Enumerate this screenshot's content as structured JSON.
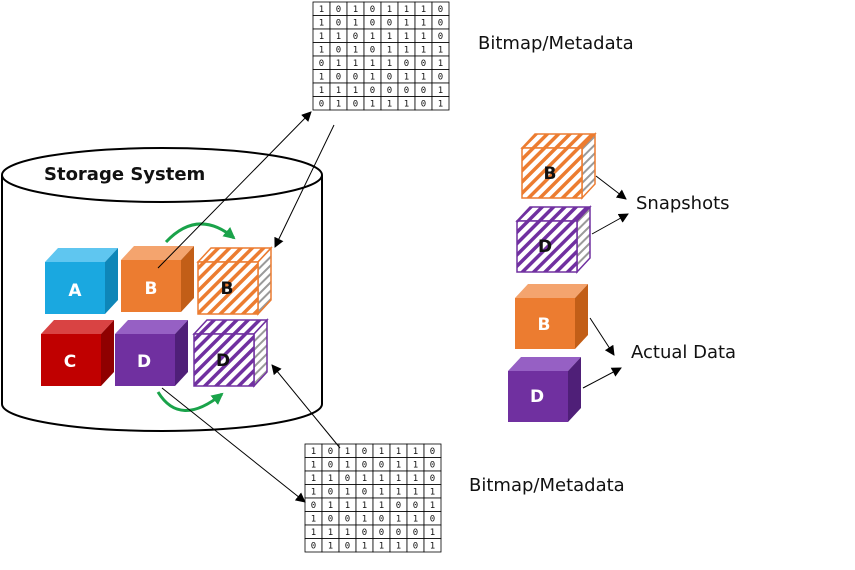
{
  "labels": {
    "storage_system": "Storage System",
    "bitmap_top": "Bitmap/Metadata",
    "bitmap_bottom": "Bitmap/Metadata",
    "snapshots": "Snapshots",
    "actual_data": "Actual Data"
  },
  "blocks": {
    "a": "A",
    "b": "B",
    "b_snap": "B",
    "c": "C",
    "d": "D",
    "d_snap": "D",
    "legend_b_snap": "B",
    "legend_d_snap": "D",
    "legend_b": "B",
    "legend_d": "D"
  },
  "colors": {
    "a": "#1aa8e0",
    "b": "#ec7c30",
    "c": "#c00000",
    "d": "#7030a0",
    "arrow_green": "#1aa34a"
  },
  "bitmap": [
    [
      1,
      0,
      1,
      0,
      1,
      1,
      1,
      0
    ],
    [
      1,
      0,
      1,
      0,
      0,
      1,
      1,
      0
    ],
    [
      1,
      1,
      0,
      1,
      1,
      1,
      1,
      0
    ],
    [
      1,
      0,
      1,
      0,
      1,
      1,
      1,
      1
    ],
    [
      0,
      1,
      1,
      1,
      1,
      0,
      0,
      1
    ],
    [
      1,
      0,
      0,
      1,
      0,
      1,
      1,
      0
    ],
    [
      1,
      1,
      1,
      0,
      0,
      0,
      0,
      1
    ],
    [
      0,
      1,
      0,
      1,
      1,
      1,
      0,
      1
    ]
  ]
}
